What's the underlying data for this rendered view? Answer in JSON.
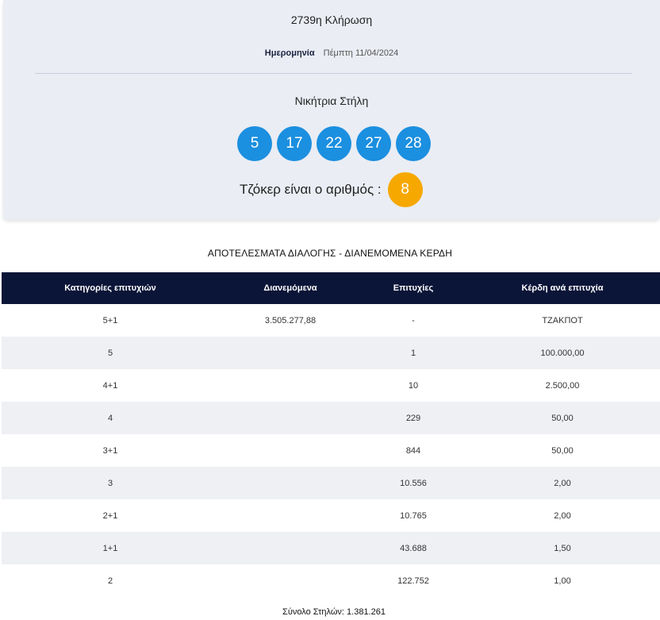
{
  "draw": {
    "title": "2739η Κλήρωση",
    "date_label": "Ημερομηνία",
    "date_value": "Πέμπτη 11/04/2024",
    "winning_title": "Νικήτρια Στήλη",
    "numbers": [
      "5",
      "17",
      "22",
      "27",
      "28"
    ],
    "joker_label": "Τζόκερ είναι ο αριθμός :",
    "joker_number": "8",
    "colors": {
      "ball": "#1b8fe0",
      "joker": "#f6a800",
      "header": "#0b1538"
    }
  },
  "results": {
    "title": "ΑΠΟΤΕΛΕΣΜΑΤΑ ΔΙΑΛΟΓΗΣ - ΔΙΑΝΕΜΟΜΕΝΑ ΚΕΡΔΗ",
    "headers": [
      "Κατηγορίες επιτυχιών",
      "Διανεμόμενα",
      "Επιτυχίες",
      "Κέρδη ανά επιτυχία"
    ],
    "rows": [
      [
        "5+1",
        "3.505.277,88",
        "-",
        "ΤΖΑΚΠΟΤ"
      ],
      [
        "5",
        "",
        "1",
        "100.000,00"
      ],
      [
        "4+1",
        "",
        "10",
        "2.500,00"
      ],
      [
        "4",
        "",
        "229",
        "50,00"
      ],
      [
        "3+1",
        "",
        "844",
        "50,00"
      ],
      [
        "3",
        "",
        "10.556",
        "2,00"
      ],
      [
        "2+1",
        "",
        "10.765",
        "2,00"
      ],
      [
        "1+1",
        "",
        "43.688",
        "1,50"
      ],
      [
        "2",
        "",
        "122.752",
        "1,00"
      ]
    ],
    "total": "Σύνολο Στηλών: 1.381.261"
  }
}
